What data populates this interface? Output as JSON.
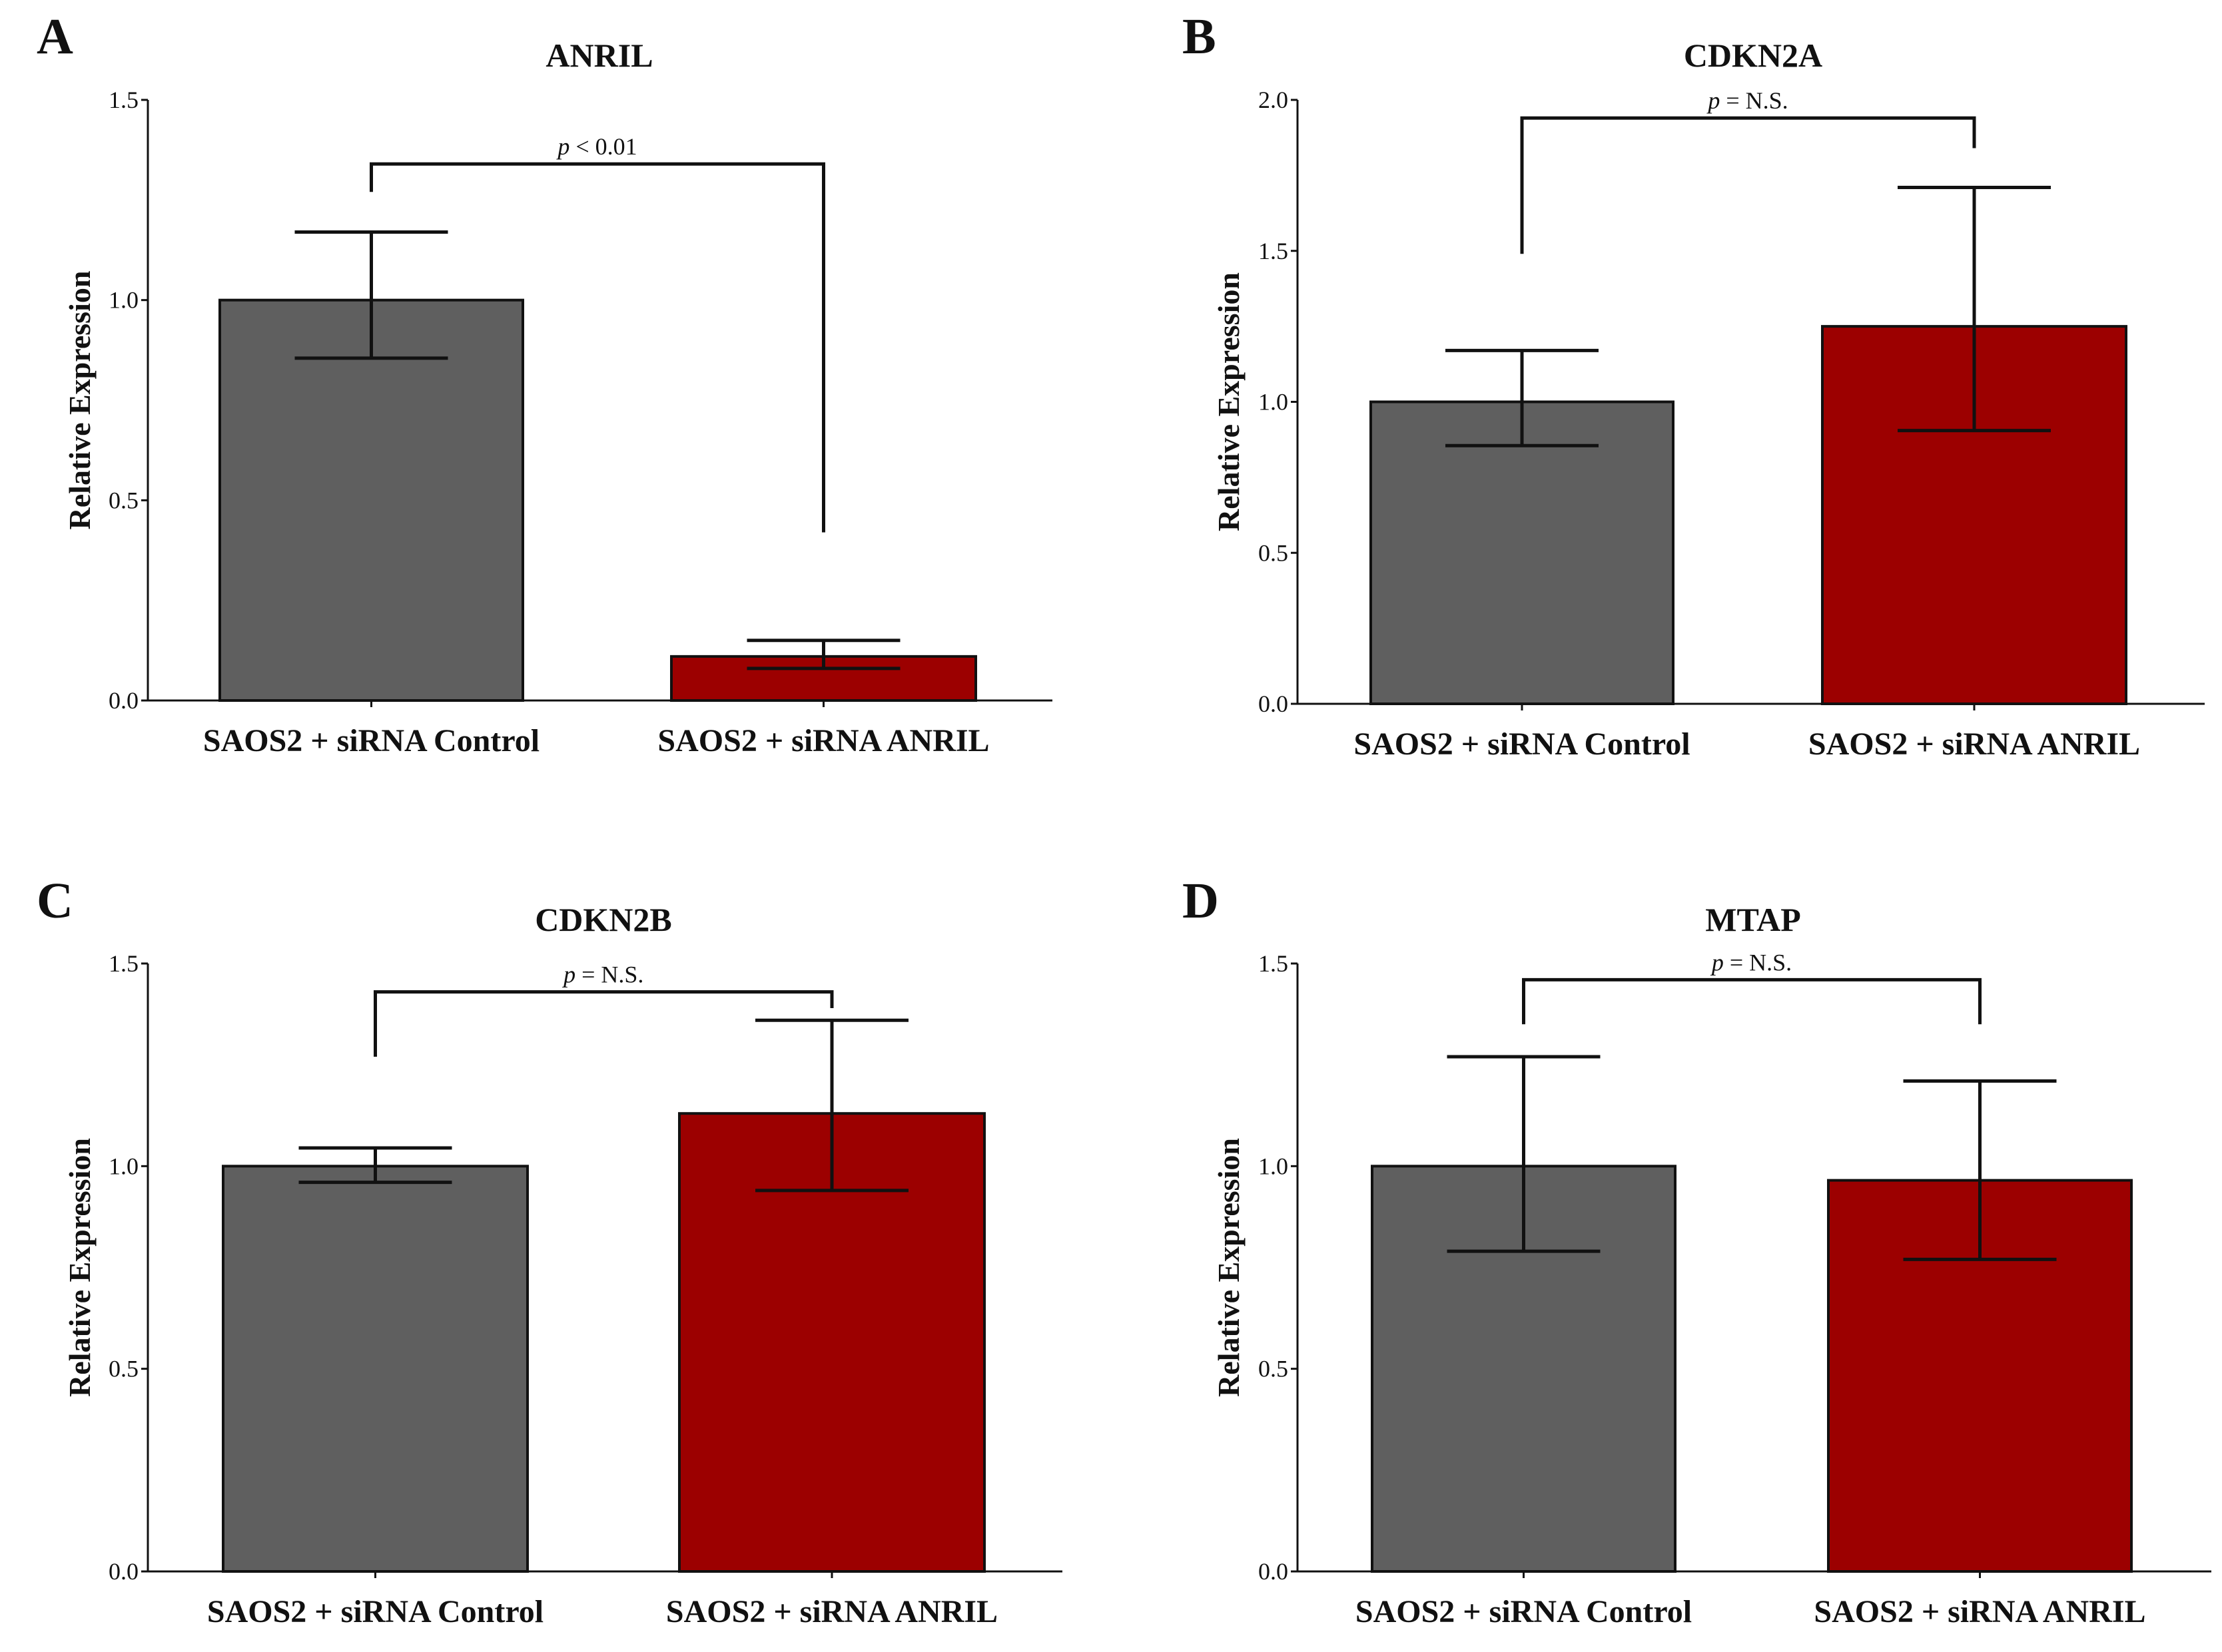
{
  "colors": {
    "control": "#5f5f5f",
    "anril": "#9c0000",
    "axis": "#111111"
  },
  "chart_data": [
    {
      "panel": "A",
      "type": "bar",
      "title": "ANRIL",
      "ylabel": "Relative Expression",
      "categories": [
        "SAOS2 + siRNA Control",
        "SAOS2 + siRNA ANRIL"
      ],
      "values": [
        1.0,
        0.11
      ],
      "error_low": [
        0.855,
        0.08
      ],
      "error_high": [
        1.17,
        0.15
      ],
      "ylim": [
        0,
        1.5
      ],
      "yticks": [
        "0.0",
        "0.5",
        "1.0",
        "1.5"
      ],
      "significance": {
        "p": "p",
        "rest": " < 0.01",
        "left_y": 1.27,
        "right_y": 0.42,
        "top_y": 1.34
      }
    },
    {
      "panel": "B",
      "type": "bar",
      "title": "CDKN2A",
      "ylabel": "Relative Expression",
      "categories": [
        "SAOS2 + siRNA Control",
        "SAOS2 + siRNA ANRIL"
      ],
      "values": [
        1.0,
        1.25
      ],
      "error_low": [
        0.855,
        0.905
      ],
      "error_high": [
        1.17,
        1.71
      ],
      "ylim": [
        0,
        2.0
      ],
      "yticks": [
        "0.0",
        "0.5",
        "1.0",
        "1.5",
        "2.0"
      ],
      "significance": {
        "p": "p",
        "rest": " = N.S.",
        "left_y": 1.49,
        "right_y": 1.84,
        "top_y": 1.94
      }
    },
    {
      "panel": "C",
      "type": "bar",
      "title": "CDKN2B",
      "ylabel": "Relative Expression",
      "categories": [
        "SAOS2 + siRNA Control",
        "SAOS2 + siRNA ANRIL"
      ],
      "values": [
        1.0,
        1.13
      ],
      "error_low": [
        0.96,
        0.94
      ],
      "error_high": [
        1.045,
        1.36
      ],
      "ylim": [
        0,
        1.5
      ],
      "yticks": [
        "0.0",
        "0.5",
        "1.0",
        "1.5"
      ],
      "significance": {
        "p": "p",
        "rest": " = N.S.",
        "left_y": 1.27,
        "right_y": 1.39,
        "top_y": 1.43
      }
    },
    {
      "panel": "D",
      "type": "bar",
      "title": "MTAP",
      "ylabel": "Relative Expression",
      "categories": [
        "SAOS2 + siRNA Control",
        "SAOS2 + siRNA ANRIL"
      ],
      "values": [
        1.0,
        0.965
      ],
      "error_low": [
        0.79,
        0.77
      ],
      "error_high": [
        1.27,
        1.21
      ],
      "ylim": [
        0,
        1.5
      ],
      "yticks": [
        "0.0",
        "0.5",
        "1.0",
        "1.5"
      ],
      "significance": {
        "p": "p",
        "rest": " = N.S.",
        "left_y": 1.35,
        "right_y": 1.35,
        "top_y": 1.46
      }
    }
  ]
}
